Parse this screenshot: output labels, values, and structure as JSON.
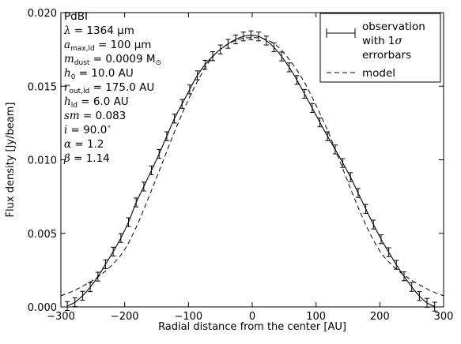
{
  "chart_data": {
    "type": "line",
    "xlabel": "Radial distance from the center [AU]",
    "ylabel": "Flux density [Jy/beam]",
    "xlim": [
      -300,
      300
    ],
    "ylim": [
      0.0,
      0.02
    ],
    "x_ticks": [
      -300,
      -200,
      -100,
      0,
      100,
      200,
      300
    ],
    "y_ticks": [
      0.0,
      0.005,
      0.01,
      0.015,
      0.02
    ],
    "x_tick_labels": [
      "−300",
      "−200",
      "−100",
      "0",
      "100",
      "200",
      "300"
    ],
    "y_tick_labels": [
      "0.000",
      "0.005",
      "0.010",
      "0.015",
      "0.020"
    ],
    "grid": false,
    "legend_position": "top-right",
    "legend": [
      {
        "label": "observation\nwith 1σ\nerrorbars",
        "style": "errorbar-solid"
      },
      {
        "label": "model",
        "style": "dashed"
      }
    ],
    "annotations": [
      "PdBI",
      "λ = 1364 μm",
      "a_max,ld = 100 μm",
      "m_dust = 0.0009 M☉",
      "h_0 = 10.0 AU",
      "r_out,ld = 175.0 AU",
      "h_ld = 6.0 AU",
      "sm = 0.083",
      "i = 90.0°",
      "α = 1.2",
      "β = 1.14"
    ],
    "observation": {
      "style": "solid",
      "x": [
        -290,
        -278,
        -266,
        -254,
        -242,
        -230,
        -218,
        -206,
        -194,
        -182,
        -170,
        -158,
        -146,
        -134,
        -122,
        -110,
        -98,
        -86,
        -74,
        -62,
        -50,
        -38,
        -26,
        -14,
        -2,
        10,
        22,
        34,
        46,
        58,
        70,
        82,
        94,
        106,
        118,
        130,
        142,
        154,
        166,
        178,
        190,
        202,
        214,
        226,
        238,
        250,
        262,
        274,
        286
      ],
      "y": [
        6e-05,
        0.00032,
        0.00076,
        0.00134,
        0.00206,
        0.0029,
        0.00376,
        0.00468,
        0.00576,
        0.0071,
        0.00818,
        0.00928,
        0.0104,
        0.0116,
        0.0128,
        0.0138,
        0.01478,
        0.01574,
        0.01646,
        0.01704,
        0.0175,
        0.01788,
        0.01818,
        0.01838,
        0.01846,
        0.01838,
        0.0181,
        0.01764,
        0.01702,
        0.01628,
        0.01542,
        0.01448,
        0.01352,
        0.01254,
        0.0116,
        0.0107,
        0.00978,
        0.00882,
        0.00774,
        0.00666,
        0.0056,
        0.0046,
        0.00372,
        0.00286,
        0.00208,
        0.00136,
        0.00074,
        0.00028,
        2e-05
      ],
      "err": [
        0.0003,
        0.0003,
        0.0003,
        0.0003,
        0.0003,
        0.0003,
        0.0003,
        0.0003,
        0.0003,
        0.0003,
        0.0003,
        0.0003,
        0.0003,
        0.0003,
        0.0003,
        0.0003,
        0.0003,
        0.0003,
        0.0003,
        0.0003,
        0.0003,
        0.0003,
        0.0003,
        0.0003,
        0.0003,
        0.0003,
        0.0003,
        0.0003,
        0.0003,
        0.0003,
        0.0003,
        0.0003,
        0.0003,
        0.0003,
        0.0003,
        0.0003,
        0.0003,
        0.0003,
        0.0003,
        0.0003,
        0.0003,
        0.0003,
        0.0003,
        0.0003,
        0.0003,
        0.0003,
        0.0003,
        0.0003,
        0.0003
      ]
    },
    "model": {
      "style": "dashed",
      "x": [
        -300,
        -280,
        -260,
        -240,
        -220,
        -200,
        -180,
        -160,
        -140,
        -120,
        -100,
        -80,
        -60,
        -40,
        -20,
        0,
        20,
        40,
        60,
        80,
        100,
        120,
        140,
        160,
        180,
        200,
        220,
        240,
        260,
        280,
        300
      ],
      "y": [
        0.00075,
        0.0011,
        0.00155,
        0.0021,
        0.00285,
        0.0039,
        0.0056,
        0.0077,
        0.0099,
        0.0121,
        0.0141,
        0.0158,
        0.0171,
        0.0178,
        0.0182,
        0.0183,
        0.0182,
        0.0177,
        0.0167,
        0.0154,
        0.0137,
        0.0118,
        0.0096,
        0.0074,
        0.0054,
        0.0038,
        0.0028,
        0.0021,
        0.00155,
        0.0011,
        0.00075
      ]
    }
  }
}
